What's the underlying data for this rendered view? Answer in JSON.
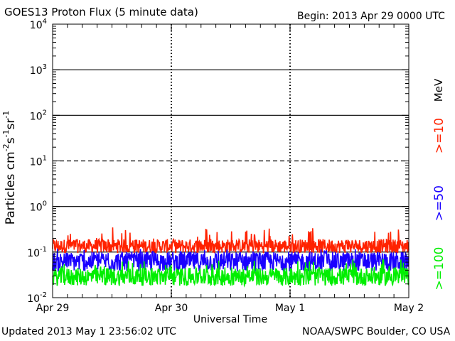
{
  "header": {
    "title": "GOES13 Proton Flux (5 minute data)",
    "begin": "Begin: 2013 Apr 29 0000 UTC"
  },
  "footer": {
    "updated": "Updated 2013 May  1 23:56:02 UTC",
    "credit": "NOAA/SWPC Boulder, CO USA"
  },
  "chart_data": {
    "type": "line",
    "title": "GOES13 Proton Flux (5 minute data)",
    "xlabel": "Universal Time",
    "ylabel_parts": [
      "Particles cm",
      "-2",
      "s",
      "-1",
      "sr",
      "-1"
    ],
    "y_scale": "log",
    "ylim": [
      0.01,
      10000
    ],
    "y_ticks": [
      {
        "base": "10",
        "exp": "-2",
        "value": 0.01
      },
      {
        "base": "10",
        "exp": "-1",
        "value": 0.1
      },
      {
        "base": "10",
        "exp": "0",
        "value": 1
      },
      {
        "base": "10",
        "exp": "1",
        "value": 10
      },
      {
        "base": "10",
        "exp": "2",
        "value": 100
      },
      {
        "base": "10",
        "exp": "3",
        "value": 1000
      },
      {
        "base": "10",
        "exp": "4",
        "value": 10000
      }
    ],
    "x_ticks": [
      "Apr 29",
      "Apr 30",
      "May 1",
      "May 2"
    ],
    "xlim": [
      "2013-04-29 00:00",
      "2013-05-02 00:00"
    ],
    "threshold_lines": [
      {
        "value": 1000,
        "style": "solid"
      },
      {
        "value": 100,
        "style": "solid"
      },
      {
        "value": 10,
        "style": "dashed"
      },
      {
        "value": 1,
        "style": "solid"
      },
      {
        "value": 0.1,
        "style": "solid"
      }
    ],
    "series": [
      {
        "name": ">=10",
        "color": "#ff2200",
        "typical": 0.14,
        "min": 0.09,
        "max": 0.35
      },
      {
        "name": ">=50",
        "color": "#1a00ff",
        "typical": 0.065,
        "min": 0.035,
        "max": 0.12
      },
      {
        "name": ">=100",
        "color": "#00ee00",
        "typical": 0.03,
        "min": 0.017,
        "max": 0.07
      }
    ],
    "legend_unit": "MeV",
    "legend_position": "right"
  }
}
